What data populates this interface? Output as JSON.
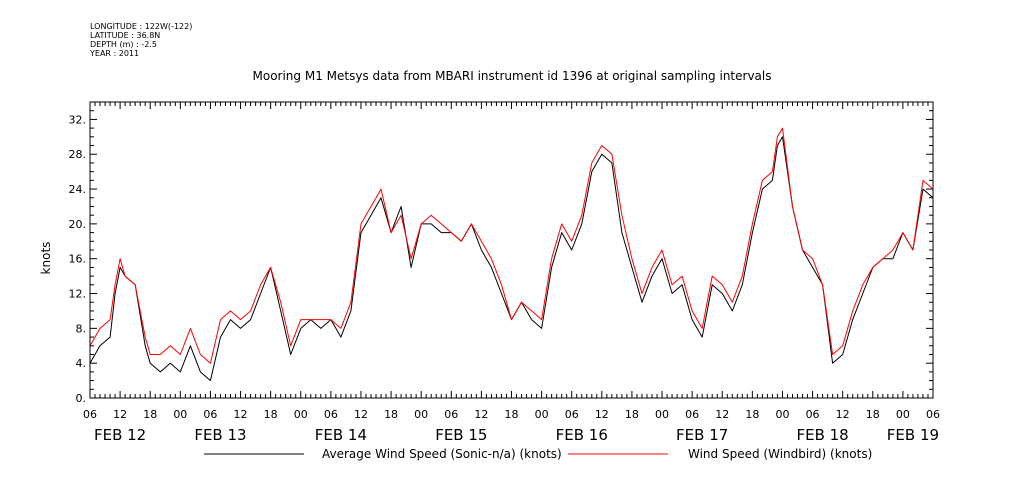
{
  "header": {
    "lines": [
      "LONGITUDE : 122W(-122)",
      "LATITUDE : 36.8N",
      "DEPTH (m) : -2.5",
      "YEAR : 2011"
    ]
  },
  "chart_data": {
    "type": "line",
    "title": "Mooring M1 Metsys data from MBARI instrument id 1396 at original sampling intervals",
    "ylabel": "knots",
    "xlabel": "",
    "ylim": [
      0,
      34
    ],
    "yticks": [
      0,
      4,
      8,
      12,
      16,
      20,
      24,
      28,
      32
    ],
    "ytick_labels": [
      "0.",
      "4.",
      "8.",
      "12.",
      "16.",
      "20.",
      "24.",
      "28.",
      "32."
    ],
    "xlim_hours": [
      0,
      168
    ],
    "hour_tick_labels": [
      "06",
      "12",
      "18",
      "00",
      "06",
      "12",
      "18",
      "00",
      "06",
      "12",
      "18",
      "00",
      "06",
      "12",
      "18",
      "00",
      "06",
      "12",
      "18",
      "00",
      "06",
      "12",
      "18",
      "00",
      "06",
      "12",
      "18",
      "00",
      "06"
    ],
    "day_labels": [
      "FEB 12",
      "FEB 13",
      "FEB 14",
      "FEB 15",
      "FEB 16",
      "FEB 17",
      "FEB 18",
      "FEB 19"
    ],
    "day_label_hours": [
      6,
      26,
      50,
      74,
      98,
      122,
      146,
      164
    ],
    "series": [
      {
        "name": "Average Wind Speed (Sonic-n/a) (knots)",
        "color": "#000000",
        "x_hours": [
          0,
          2,
          4,
          5,
          6,
          7,
          9,
          11,
          12,
          14,
          16,
          18,
          20,
          22,
          24,
          26,
          28,
          30,
          32,
          34,
          36,
          38,
          40,
          42,
          44,
          46,
          48,
          50,
          52,
          54,
          56,
          58,
          60,
          62,
          64,
          66,
          68,
          70,
          72,
          74,
          76,
          78,
          80,
          82,
          84,
          86,
          88,
          90,
          92,
          94,
          96,
          98,
          100,
          102,
          104,
          106,
          108,
          110,
          112,
          114,
          116,
          118,
          120,
          122,
          124,
          126,
          128,
          130,
          132,
          134,
          136,
          137,
          138,
          140,
          142,
          144,
          146,
          148,
          150,
          152,
          154,
          156,
          158,
          160,
          162,
          164,
          166,
          168
        ],
        "values": [
          4,
          6,
          7,
          12,
          15,
          14,
          13,
          6,
          4,
          3,
          4,
          3,
          6,
          3,
          2,
          7,
          9,
          8,
          9,
          12,
          15,
          10,
          5,
          8,
          9,
          8,
          9,
          7,
          10,
          19,
          21,
          23,
          19,
          22,
          15,
          20,
          20,
          19,
          19,
          18,
          20,
          17,
          15,
          12,
          9,
          11,
          9,
          8,
          15,
          19,
          17,
          20,
          26,
          28,
          27,
          19,
          15,
          11,
          14,
          16,
          12,
          13,
          9,
          7,
          13,
          12,
          10,
          13,
          19,
          24,
          25,
          29,
          30,
          22,
          17,
          15,
          13,
          4,
          5,
          9,
          12,
          15,
          16,
          16,
          19,
          17,
          24,
          23
        ]
      },
      {
        "name": "Wind Speed (Windbird) (knots)",
        "color": "#ff0000",
        "x_hours": [
          0,
          2,
          4,
          5,
          6,
          7,
          9,
          11,
          12,
          14,
          16,
          18,
          20,
          22,
          24,
          26,
          28,
          30,
          32,
          34,
          36,
          38,
          40,
          42,
          44,
          46,
          48,
          50,
          52,
          54,
          56,
          58,
          60,
          62,
          64,
          66,
          68,
          70,
          72,
          74,
          76,
          78,
          80,
          82,
          84,
          86,
          88,
          90,
          92,
          94,
          96,
          98,
          100,
          102,
          104,
          106,
          108,
          110,
          112,
          114,
          116,
          118,
          120,
          122,
          124,
          126,
          128,
          130,
          132,
          134,
          136,
          137,
          138,
          140,
          142,
          144,
          146,
          148,
          150,
          152,
          154,
          156,
          158,
          160,
          162,
          164,
          166,
          168
        ],
        "values": [
          6,
          8,
          9,
          13,
          16,
          14,
          13,
          7,
          5,
          5,
          6,
          5,
          8,
          5,
          4,
          9,
          10,
          9,
          10,
          13,
          15,
          11,
          6,
          9,
          9,
          9,
          9,
          8,
          11,
          20,
          22,
          24,
          19,
          21,
          16,
          20,
          21,
          20,
          19,
          18,
          20,
          18,
          16,
          13,
          9,
          11,
          10,
          9,
          16,
          20,
          18,
          21,
          27,
          29,
          28,
          21,
          16,
          12,
          15,
          17,
          13,
          14,
          10,
          8,
          14,
          13,
          11,
          14,
          20,
          25,
          26,
          30,
          31,
          22,
          17,
          16,
          13,
          5,
          6,
          10,
          13,
          15,
          16,
          17,
          19,
          17,
          25,
          24
        ]
      }
    ]
  }
}
